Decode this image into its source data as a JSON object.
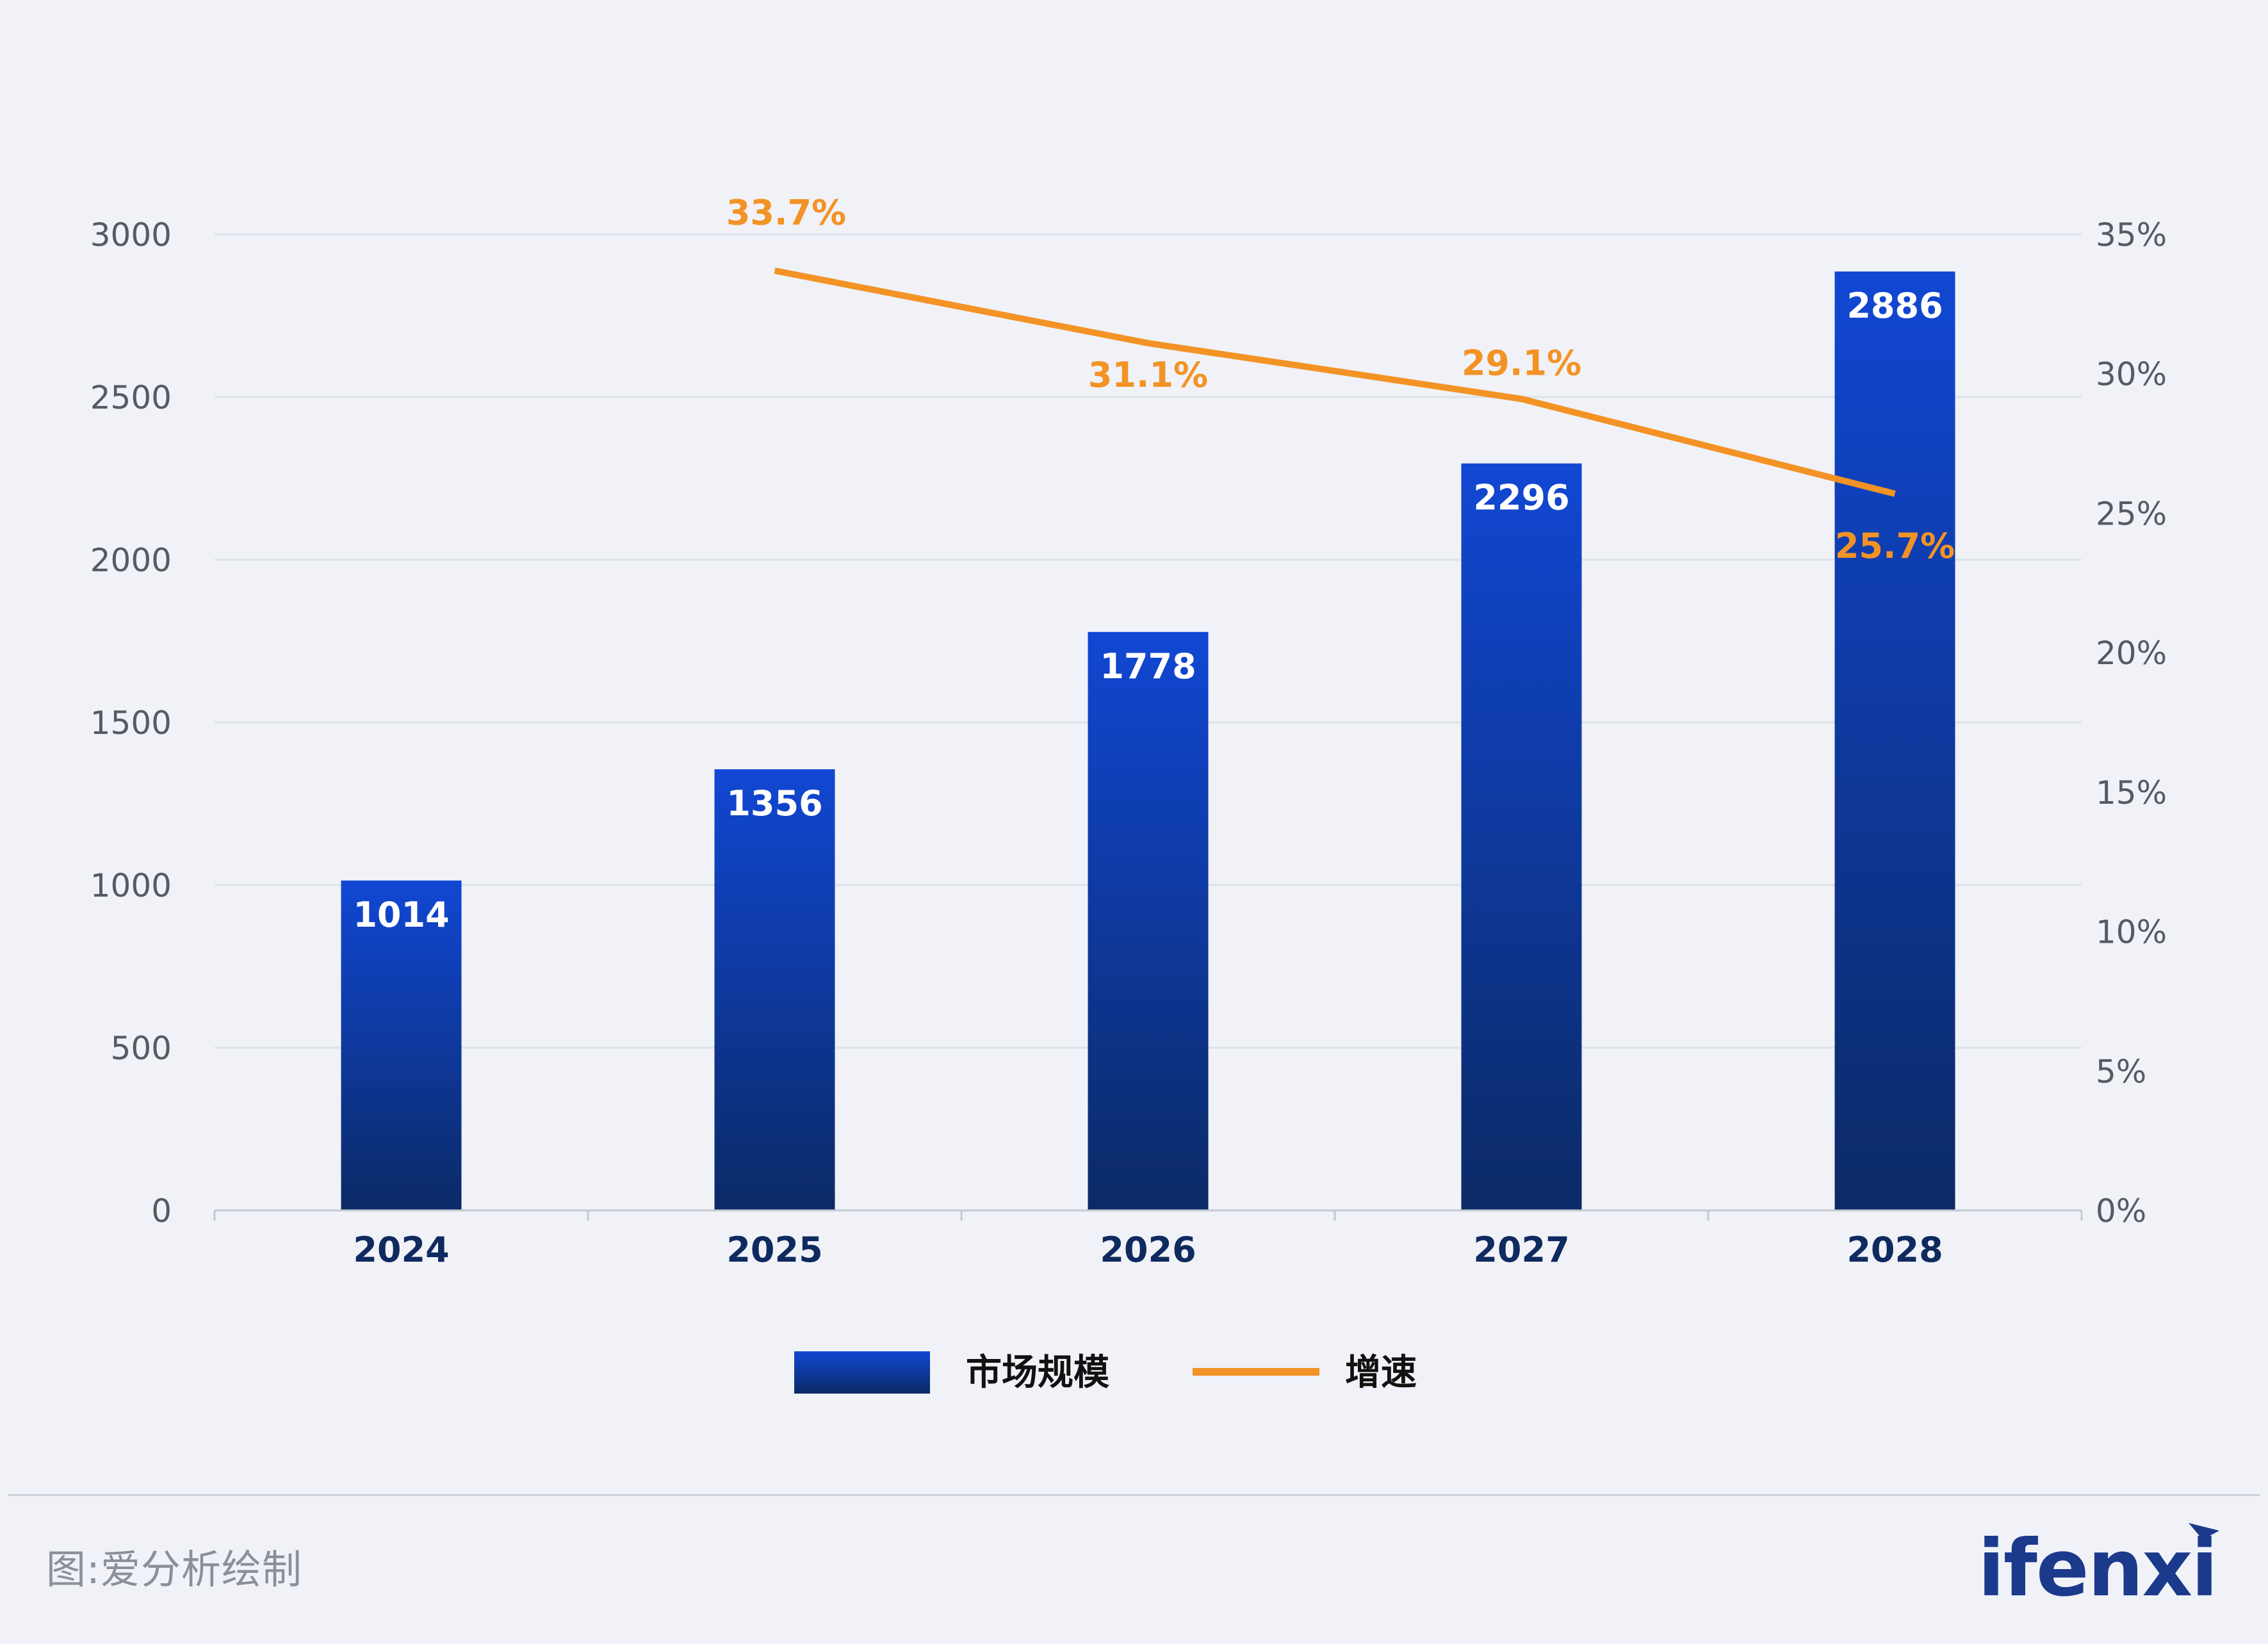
{
  "chart_data": {
    "type": "bar",
    "categories": [
      "2024",
      "2025",
      "2026",
      "2027",
      "2028"
    ],
    "series": [
      {
        "name": "市场规模",
        "type": "bar",
        "axis": "left",
        "values": [
          1014,
          1356,
          1778,
          2296,
          2886
        ],
        "data_labels": [
          "1014",
          "1356",
          "1778",
          "2296",
          "2886"
        ]
      },
      {
        "name": "增速",
        "type": "line",
        "axis": "right",
        "values": [
          null,
          33.7,
          31.1,
          29.1,
          25.7
        ],
        "data_labels": [
          "",
          "33.7%",
          "31.1%",
          "29.1%",
          "25.7%"
        ]
      }
    ],
    "y_left": {
      "min": 0,
      "max": 3000,
      "ticks": [
        "0",
        "500",
        "1000",
        "1500",
        "2000",
        "2500",
        "3000"
      ]
    },
    "y_right": {
      "min": 0,
      "max": 35,
      "ticks": [
        "0%",
        "5%",
        "10%",
        "15%",
        "20%",
        "25%",
        "30%",
        "35%"
      ]
    },
    "grid": true,
    "legend_position": "bottom-center",
    "colors": {
      "bar_top": "#1147d3",
      "bar_bottom": "#0b2a66",
      "line": "#f39325",
      "line_label": "#f39325",
      "axis_text": "#555a63",
      "category_text": "#0f2a5e",
      "grid": "#dde1e8"
    }
  },
  "footer": {
    "source": "图:爱分析绘制",
    "brand": "ifenxi"
  }
}
